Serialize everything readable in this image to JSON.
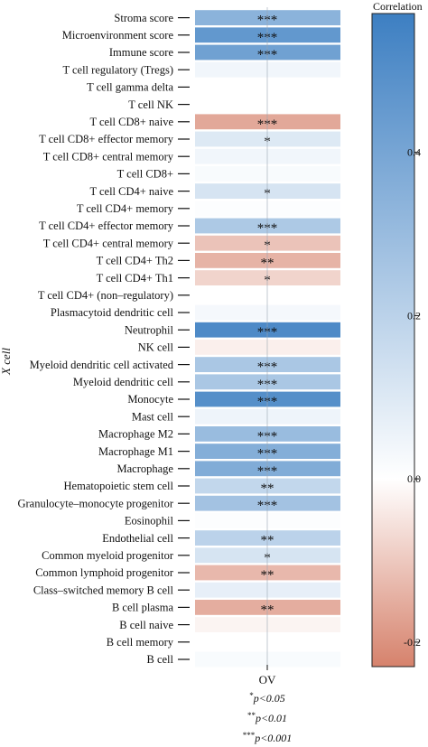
{
  "chart_data": {
    "type": "heatmap",
    "ylabel": "X cell",
    "xlabel": "OV",
    "colorbar": {
      "title": "Correlation",
      "ticks": [
        0.4,
        0.2,
        0.0,
        -0.2
      ],
      "range": [
        -0.23,
        0.57
      ],
      "colors": {
        "negative": "#d6826c",
        "zero": "#ffffff",
        "positive": "#3d7fc2"
      }
    },
    "rows": [
      {
        "label": "Stroma score",
        "value": 0.34,
        "sig": "***"
      },
      {
        "label": "Microenvironment score",
        "value": 0.46,
        "sig": "***"
      },
      {
        "label": "Immune score",
        "value": 0.42,
        "sig": "***"
      },
      {
        "label": "T cell regulatory (Tregs)",
        "value": 0.04,
        "sig": ""
      },
      {
        "label": "T cell gamma delta",
        "value": 0.0,
        "sig": ""
      },
      {
        "label": "T cell NK",
        "value": 0.0,
        "sig": ""
      },
      {
        "label": "T cell CD8+ naive",
        "value": -0.16,
        "sig": "***"
      },
      {
        "label": "T cell CD8+ effector memory",
        "value": 0.1,
        "sig": "*"
      },
      {
        "label": "T cell CD8+ central memory",
        "value": 0.04,
        "sig": ""
      },
      {
        "label": "T cell CD8+",
        "value": 0.02,
        "sig": ""
      },
      {
        "label": "T cell CD4+ naive",
        "value": 0.12,
        "sig": "*"
      },
      {
        "label": "T cell CD4+ memory",
        "value": 0.01,
        "sig": ""
      },
      {
        "label": "T cell CD4+ effector memory",
        "value": 0.24,
        "sig": "***"
      },
      {
        "label": "T cell CD4+ central memory",
        "value": -0.11,
        "sig": "*"
      },
      {
        "label": "T cell CD4+ Th2",
        "value": -0.14,
        "sig": "**"
      },
      {
        "label": "T cell CD4+ Th1",
        "value": -0.08,
        "sig": "*"
      },
      {
        "label": "T cell CD4+ (non–regulatory)",
        "value": 0.0,
        "sig": ""
      },
      {
        "label": "Plasmacytoid dendritic cell",
        "value": 0.03,
        "sig": ""
      },
      {
        "label": "Neutrophil",
        "value": 0.52,
        "sig": "***"
      },
      {
        "label": "NK cell",
        "value": -0.03,
        "sig": ""
      },
      {
        "label": "Myeloid dendritic cell activated",
        "value": 0.25,
        "sig": "***"
      },
      {
        "label": "Myeloid dendritic cell",
        "value": 0.25,
        "sig": "***"
      },
      {
        "label": "Monocyte",
        "value": 0.5,
        "sig": "***"
      },
      {
        "label": "Mast cell",
        "value": 0.05,
        "sig": ""
      },
      {
        "label": "Macrophage M2",
        "value": 0.3,
        "sig": "***"
      },
      {
        "label": "Macrophage M1",
        "value": 0.36,
        "sig": "***"
      },
      {
        "label": "Macrophage",
        "value": 0.37,
        "sig": "***"
      },
      {
        "label": "Hematopoietic stem cell",
        "value": 0.18,
        "sig": "**"
      },
      {
        "label": "Granulocyte–monocyte progenitor",
        "value": 0.27,
        "sig": "***"
      },
      {
        "label": "Eosinophil",
        "value": 0.01,
        "sig": ""
      },
      {
        "label": "Endothelial cell",
        "value": 0.2,
        "sig": "**"
      },
      {
        "label": "Common myeloid progenitor",
        "value": 0.12,
        "sig": "*"
      },
      {
        "label": "Common lymphoid progenitor",
        "value": -0.13,
        "sig": "**"
      },
      {
        "label": "Class–switched memory B cell",
        "value": 0.07,
        "sig": ""
      },
      {
        "label": "B cell plasma",
        "value": -0.15,
        "sig": "**"
      },
      {
        "label": "B cell naive",
        "value": -0.02,
        "sig": ""
      },
      {
        "label": "B cell memory",
        "value": 0.0,
        "sig": ""
      },
      {
        "label": "B cell",
        "value": 0.02,
        "sig": ""
      }
    ]
  },
  "footnote": [
    {
      "stars": "*",
      "text": "p<0.05"
    },
    {
      "stars": "**",
      "text": "p<0.01"
    },
    {
      "stars": "***",
      "text": "p<0.001"
    }
  ]
}
